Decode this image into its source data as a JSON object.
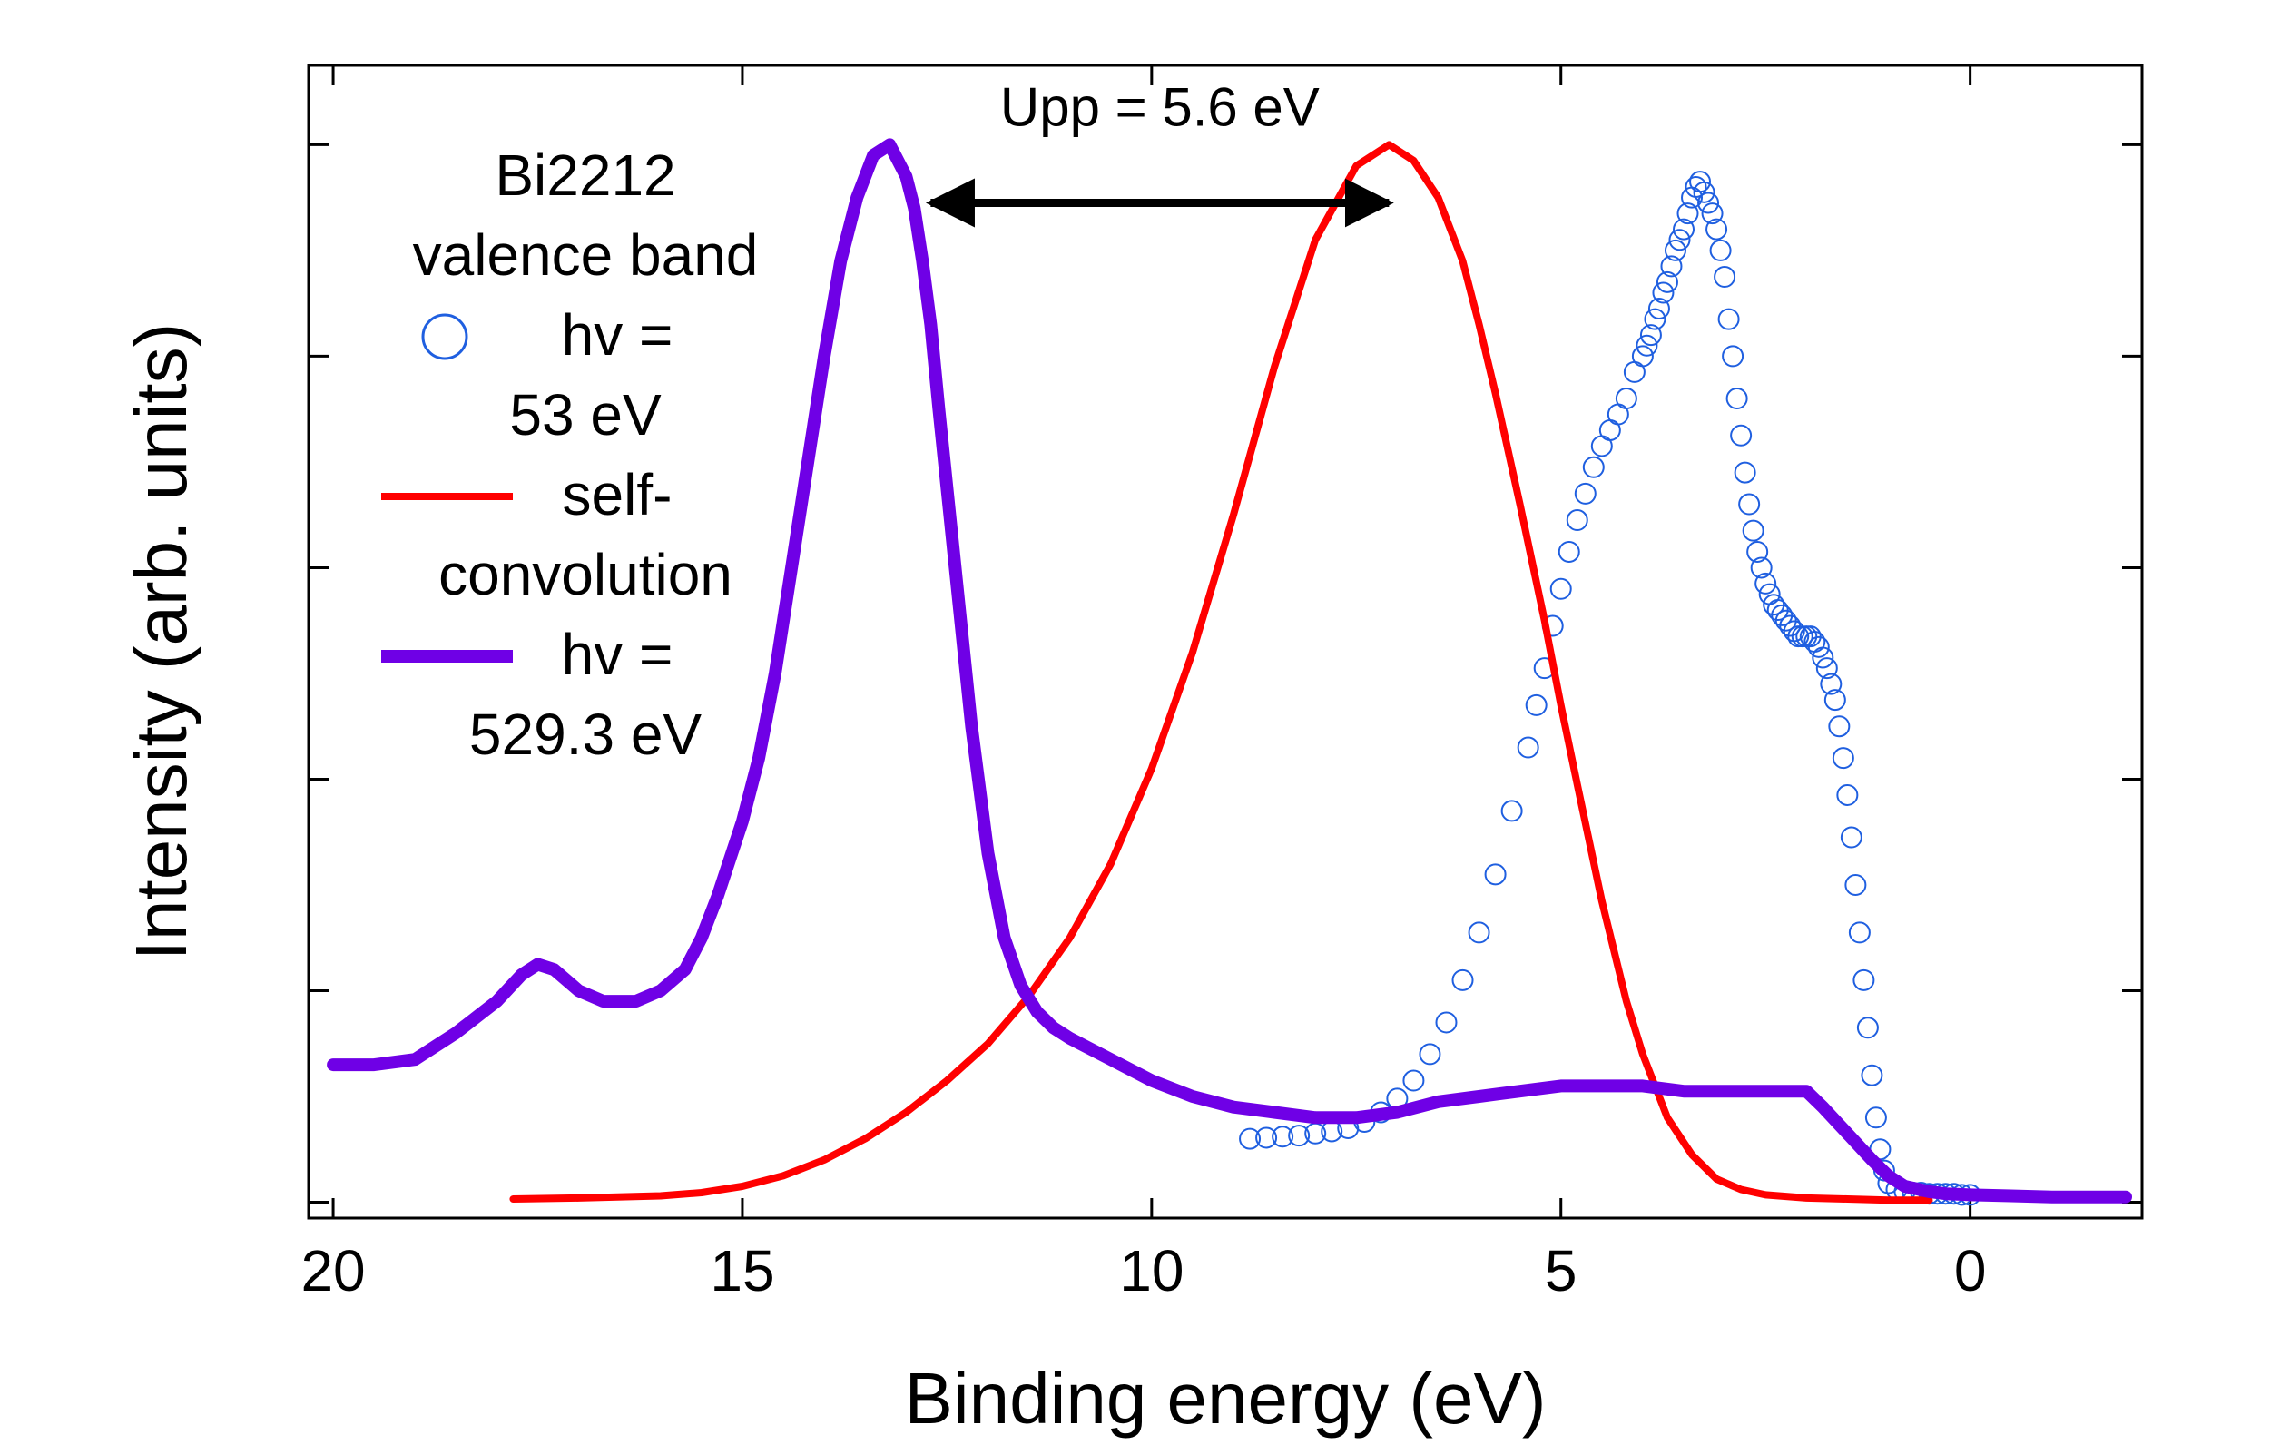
{
  "chart_data": {
    "type": "line",
    "title": "",
    "xlabel": "Binding energy (eV)",
    "ylabel": "Intensity (arb. units)",
    "xlim": [
      20.3,
      -2.1
    ],
    "ylim": [
      -0.015,
      1.075
    ],
    "x_reversed": true,
    "x_ticks": [
      20,
      15,
      10,
      5,
      0
    ],
    "x_tick_labels": [
      "20",
      "15",
      "10",
      "5",
      "0"
    ],
    "y_ticks": [
      0,
      0.2,
      0.4,
      0.6,
      0.8,
      1.0
    ],
    "y_tick_labels_shown": false,
    "grid": false,
    "legend": {
      "placement": "top-left",
      "header": [
        "Bi2212",
        "valence band"
      ],
      "entries": [
        {
          "marker": "circle",
          "lines": [
            "hv =",
            "53 eV"
          ]
        },
        {
          "marker": "line",
          "lines": [
            "self-",
            "convolution"
          ]
        },
        {
          "marker": "thick-line",
          "lines": [
            "hv  =",
            "529.3 eV"
          ]
        }
      ]
    },
    "annotation": {
      "text": "Upp = 5.6 eV",
      "arrow_from_x": 12.7,
      "arrow_to_x": 7.1,
      "arrow_y": 0.945
    },
    "series": [
      {
        "style": "markers",
        "color": "#1f5fe0",
        "x": [
          8.8,
          8.6,
          8.4,
          8.2,
          8.0,
          7.8,
          7.6,
          7.4,
          7.2,
          7.0,
          6.8,
          6.6,
          6.4,
          6.2,
          6.0,
          5.8,
          5.6,
          5.4,
          5.3,
          5.2,
          5.1,
          5.0,
          4.9,
          4.8,
          4.7,
          4.6,
          4.5,
          4.4,
          4.3,
          4.2,
          4.1,
          4.0,
          3.95,
          3.9,
          3.85,
          3.8,
          3.75,
          3.7,
          3.65,
          3.6,
          3.55,
          3.5,
          3.45,
          3.4,
          3.35,
          3.3,
          3.25,
          3.2,
          3.15,
          3.1,
          3.05,
          3.0,
          2.95,
          2.9,
          2.85,
          2.8,
          2.75,
          2.7,
          2.65,
          2.6,
          2.55,
          2.5,
          2.45,
          2.4,
          2.35,
          2.3,
          2.25,
          2.2,
          2.15,
          2.1,
          2.05,
          2.0,
          1.95,
          1.9,
          1.85,
          1.8,
          1.75,
          1.7,
          1.65,
          1.6,
          1.55,
          1.5,
          1.45,
          1.4,
          1.35,
          1.3,
          1.25,
          1.2,
          1.15,
          1.1,
          1.05,
          1.0,
          0.9,
          0.8,
          0.7,
          0.6,
          0.5,
          0.4,
          0.3,
          0.2,
          0.1,
          0.0
        ],
        "y": [
          0.06,
          0.061,
          0.062,
          0.063,
          0.065,
          0.067,
          0.07,
          0.076,
          0.085,
          0.098,
          0.115,
          0.14,
          0.17,
          0.21,
          0.255,
          0.31,
          0.37,
          0.43,
          0.47,
          0.505,
          0.545,
          0.58,
          0.615,
          0.645,
          0.67,
          0.695,
          0.715,
          0.73,
          0.745,
          0.76,
          0.785,
          0.8,
          0.81,
          0.82,
          0.835,
          0.845,
          0.86,
          0.87,
          0.885,
          0.9,
          0.91,
          0.92,
          0.935,
          0.95,
          0.96,
          0.965,
          0.955,
          0.945,
          0.935,
          0.92,
          0.9,
          0.875,
          0.835,
          0.8,
          0.76,
          0.725,
          0.69,
          0.66,
          0.635,
          0.615,
          0.6,
          0.585,
          0.575,
          0.565,
          0.56,
          0.555,
          0.55,
          0.545,
          0.54,
          0.535,
          0.535,
          0.535,
          0.535,
          0.53,
          0.525,
          0.515,
          0.505,
          0.49,
          0.475,
          0.45,
          0.42,
          0.385,
          0.345,
          0.3,
          0.255,
          0.21,
          0.165,
          0.12,
          0.08,
          0.05,
          0.03,
          0.018,
          0.012,
          0.01,
          0.009,
          0.009,
          0.008,
          0.008,
          0.008,
          0.008,
          0.007,
          0.007
        ]
      },
      {
        "style": "line",
        "color": "#ff0000",
        "x": [
          17.8,
          17.0,
          16.0,
          15.5,
          15.0,
          14.5,
          14.0,
          13.5,
          13.0,
          12.5,
          12.0,
          11.5,
          11.0,
          10.5,
          10.0,
          9.5,
          9.0,
          8.5,
          8.0,
          7.5,
          7.1,
          6.8,
          6.5,
          6.2,
          6.0,
          5.8,
          5.5,
          5.2,
          5.0,
          4.8,
          4.5,
          4.2,
          4.0,
          3.7,
          3.4,
          3.1,
          2.8,
          2.5,
          2.0,
          1.5,
          1.0,
          0.5
        ],
        "y": [
          0.003,
          0.004,
          0.006,
          0.009,
          0.015,
          0.025,
          0.04,
          0.06,
          0.085,
          0.115,
          0.15,
          0.195,
          0.25,
          0.32,
          0.41,
          0.52,
          0.65,
          0.79,
          0.91,
          0.98,
          1.0,
          0.985,
          0.95,
          0.89,
          0.83,
          0.765,
          0.66,
          0.55,
          0.47,
          0.395,
          0.285,
          0.19,
          0.14,
          0.08,
          0.045,
          0.022,
          0.012,
          0.007,
          0.004,
          0.003,
          0.002,
          0.002
        ]
      },
      {
        "style": "thick-line",
        "color": "#6f00e6",
        "x": [
          20.0,
          19.5,
          19.0,
          18.5,
          18.0,
          17.7,
          17.5,
          17.3,
          17.0,
          16.7,
          16.3,
          16.0,
          15.7,
          15.5,
          15.3,
          15.0,
          14.8,
          14.6,
          14.4,
          14.2,
          14.0,
          13.8,
          13.6,
          13.4,
          13.2,
          13.0,
          12.9,
          12.8,
          12.7,
          12.6,
          12.4,
          12.2,
          12.0,
          11.8,
          11.6,
          11.4,
          11.2,
          11.0,
          10.5,
          10.0,
          9.5,
          9.0,
          8.5,
          8.0,
          7.5,
          7.0,
          6.5,
          6.0,
          5.5,
          5.0,
          4.5,
          4.0,
          3.5,
          3.0,
          2.5,
          2.0,
          1.8,
          1.5,
          1.2,
          1.0,
          0.8,
          0.5,
          0.3,
          0.0,
          -0.5,
          -1.0,
          -1.5,
          -1.9
        ],
        "y": [
          0.13,
          0.13,
          0.135,
          0.16,
          0.19,
          0.215,
          0.225,
          0.22,
          0.2,
          0.19,
          0.19,
          0.2,
          0.22,
          0.25,
          0.29,
          0.36,
          0.42,
          0.5,
          0.6,
          0.7,
          0.8,
          0.89,
          0.95,
          0.99,
          1.0,
          0.97,
          0.94,
          0.89,
          0.83,
          0.75,
          0.6,
          0.45,
          0.33,
          0.25,
          0.205,
          0.18,
          0.165,
          0.155,
          0.135,
          0.115,
          0.1,
          0.09,
          0.085,
          0.08,
          0.08,
          0.085,
          0.095,
          0.1,
          0.105,
          0.11,
          0.11,
          0.11,
          0.105,
          0.105,
          0.105,
          0.105,
          0.09,
          0.065,
          0.04,
          0.025,
          0.015,
          0.01,
          0.008,
          0.007,
          0.006,
          0.005,
          0.005,
          0.005
        ]
      }
    ]
  }
}
